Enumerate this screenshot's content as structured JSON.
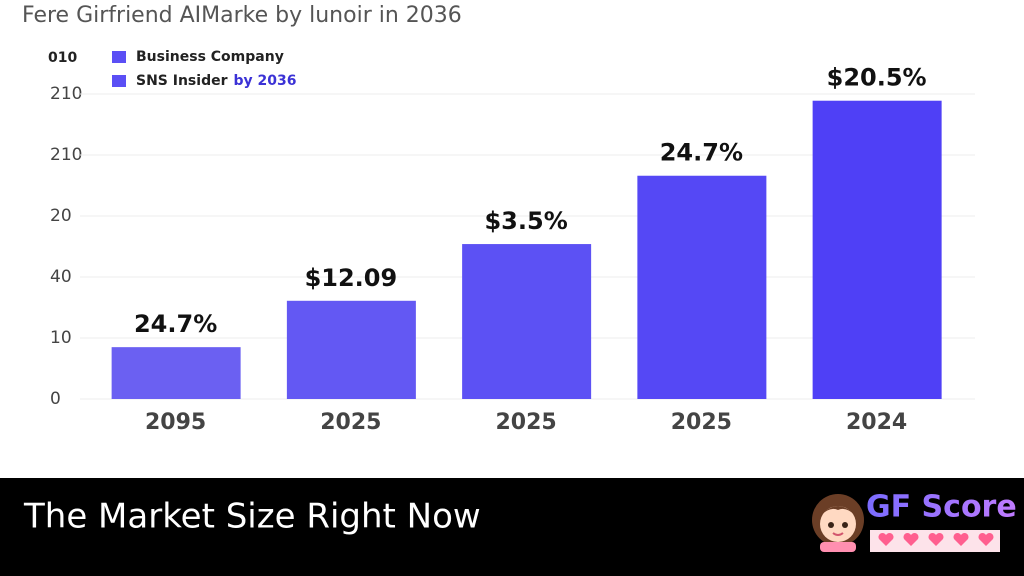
{
  "chart_data": {
    "type": "bar",
    "title": "Fere Girfriend AIMarke by lunoir in 2036",
    "axis_unit_label": "010",
    "legend": [
      {
        "text": "Business   Company",
        "color": "#5b4ff5"
      },
      {
        "text": "SNS Insider",
        "suffix": "by 2036",
        "color": "#5b4ff5",
        "suffix_color": "#3b32d6"
      }
    ],
    "categories": [
      "2095",
      "2025",
      "2025",
      "2025",
      "2024"
    ],
    "values": [
      0.85,
      1.61,
      2.54,
      3.66,
      4.89
    ],
    "value_labels": [
      "24.7%",
      "$12.09",
      "$3.5%",
      "24.7%",
      "$20.5%"
    ],
    "colors": [
      "#6b60f2",
      "#6358f3",
      "#5c51f4",
      "#5548f5",
      "#4f40f6"
    ],
    "ylim": [
      0,
      5
    ],
    "yticks": [
      0,
      {
        "value": 1,
        "label": "10"
      },
      {
        "value": 2,
        "label": "40"
      },
      {
        "value": 3,
        "label": "20"
      },
      {
        "value": 4,
        "label": "210"
      },
      {
        "value": 5,
        "label": "210"
      }
    ],
    "grid": true
  },
  "banner": {
    "caption": "The Market Size Right Now",
    "logo_text": "GF Score"
  }
}
